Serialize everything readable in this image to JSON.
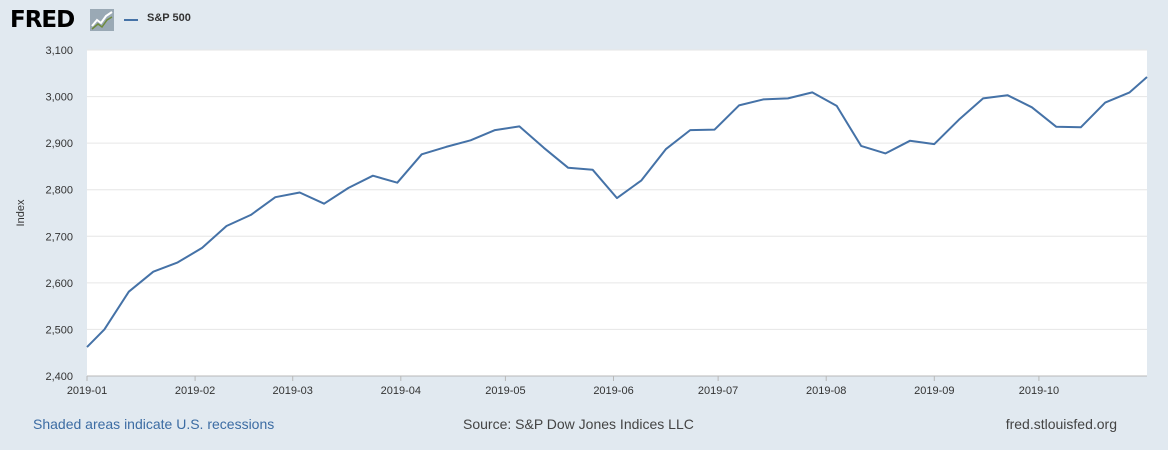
{
  "header": {
    "logo_text": "FRED",
    "logo_icon": "fred-graph-icon"
  },
  "footer": {
    "recession_note": "Shaded areas indicate U.S. recessions",
    "source": "Source: S&P Dow Jones Indices LLC",
    "site": "fred.stlouisfed.org"
  },
  "colors": {
    "series": "#4572a7",
    "background": "#e1e9f0",
    "plot_background": "#ffffff",
    "link": "#3c6ca3"
  },
  "chart_data": {
    "type": "line",
    "title": "",
    "xlabel": "",
    "ylabel": "Index",
    "ylim": [
      2400,
      3100
    ],
    "y_ticks": [
      "2,400",
      "2,500",
      "2,600",
      "2,700",
      "2,800",
      "2,900",
      "3,000",
      "3,100"
    ],
    "x_ticks": [
      "2019-01",
      "2019-02",
      "2019-03",
      "2019-04",
      "2019-05",
      "2019-06",
      "2019-07",
      "2019-08",
      "2019-09",
      "2019-10"
    ],
    "x_range": [
      "2019-01-01",
      "2019-11-01"
    ],
    "grid": true,
    "legend_position": "top-left",
    "series": [
      {
        "name": "S&P 500",
        "x": [
          "2019-01-01",
          "2019-01-06",
          "2019-01-13",
          "2019-01-20",
          "2019-01-27",
          "2019-02-03",
          "2019-02-10",
          "2019-02-17",
          "2019-02-24",
          "2019-03-03",
          "2019-03-10",
          "2019-03-17",
          "2019-03-24",
          "2019-03-31",
          "2019-04-07",
          "2019-04-14",
          "2019-04-21",
          "2019-04-28",
          "2019-05-05",
          "2019-05-12",
          "2019-05-19",
          "2019-05-26",
          "2019-06-02",
          "2019-06-09",
          "2019-06-16",
          "2019-06-23",
          "2019-06-30",
          "2019-07-07",
          "2019-07-14",
          "2019-07-21",
          "2019-07-28",
          "2019-08-04",
          "2019-08-11",
          "2019-08-18",
          "2019-08-25",
          "2019-09-01",
          "2019-09-08",
          "2019-09-15",
          "2019-09-22",
          "2019-09-29",
          "2019-10-06",
          "2019-10-13",
          "2019-10-20",
          "2019-10-27",
          "2019-11-01"
        ],
        "values": [
          2462,
          2500,
          2581,
          2624,
          2644,
          2675,
          2722,
          2746,
          2784,
          2794,
          2770,
          2804,
          2830,
          2815,
          2876,
          2892,
          2906,
          2928,
          2936,
          2890,
          2847,
          2843,
          2782,
          2820,
          2887,
          2928,
          2929,
          2981,
          2994,
          2996,
          3009,
          2980,
          2894,
          2878,
          2905,
          2898,
          2950,
          2996,
          3003,
          2977,
          2935,
          2934,
          2987,
          3009,
          3042
        ]
      }
    ]
  }
}
